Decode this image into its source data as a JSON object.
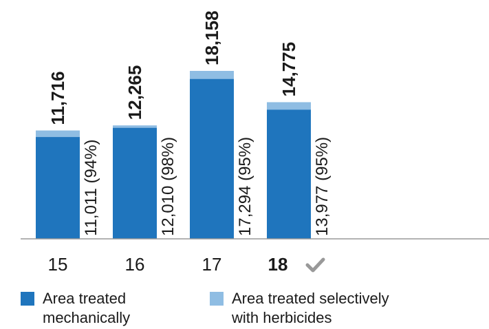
{
  "chart_data": {
    "type": "bar",
    "stacked": true,
    "categories": [
      "15",
      "16",
      "17",
      "18"
    ],
    "highlighted_category": "18",
    "highlight_icon": "checkmark-icon",
    "series": [
      {
        "name": "Area treated mechanically",
        "color": "#1f75bd",
        "values": [
          11011,
          12010,
          17294,
          13977
        ]
      },
      {
        "name": "Area treated selectively with herbicides",
        "color": "#8fbde3",
        "values": [
          705,
          255,
          864,
          798
        ]
      }
    ],
    "totals": [
      11716,
      12265,
      18158,
      14775
    ],
    "total_labels": [
      "11,716",
      "12,265",
      "18,158",
      "14,775"
    ],
    "mechanical_labels": [
      "11,011 (94%)",
      "12,010 (98%)",
      "17,294 (95%)",
      "13,977 (95%)"
    ],
    "ylim": [
      0,
      18158
    ],
    "title": "",
    "xlabel": "",
    "ylabel": "",
    "grid": false,
    "legend_placement": "bottom",
    "axis_color": "#999999",
    "checkmark_color": "#999999"
  },
  "legend": {
    "mechanical_line1": "Area treated",
    "mechanical_line2": "mechanically",
    "herbicide_line1": "Area treated selectively",
    "herbicide_line2": "with herbicides"
  }
}
